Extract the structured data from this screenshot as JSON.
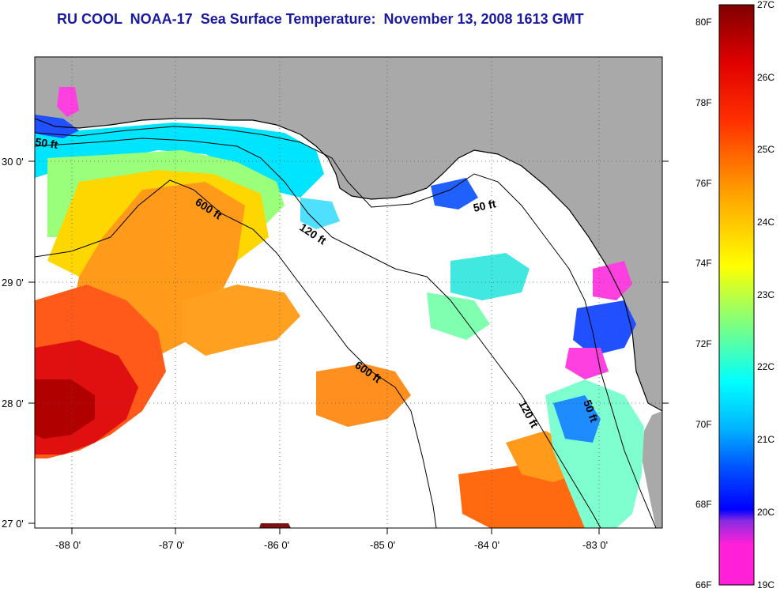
{
  "title": "RU COOL  NOAA-17  Sea Surface Temperature:  November 13, 2008 1613 GMT",
  "lat_ticks": [
    {
      "value": 30,
      "label": "30 0'"
    },
    {
      "value": 29,
      "label": "29 0'"
    },
    {
      "value": 28,
      "label": "28 0'"
    },
    {
      "value": 27,
      "label": "27 0'"
    }
  ],
  "lon_ticks": [
    {
      "value": -88,
      "label": "-88 0'"
    },
    {
      "value": -87,
      "label": "-87 0'"
    },
    {
      "value": -86,
      "label": "-86 0'"
    },
    {
      "value": -85,
      "label": "-85 0'"
    },
    {
      "value": -84,
      "label": "-84 0'"
    },
    {
      "value": -83,
      "label": "-83 0'"
    }
  ],
  "contour_labels": [
    {
      "text": "50 ft"
    },
    {
      "text": "600 ft"
    },
    {
      "text": "120 ft"
    },
    {
      "text": "50 ft"
    },
    {
      "text": "600 ft"
    },
    {
      "text": "120 ft"
    },
    {
      "text": "50 ft"
    }
  ],
  "colorbar": {
    "fahrenheit": [
      "80F",
      "78F",
      "76F",
      "74F",
      "72F",
      "70F",
      "68F",
      "66F"
    ],
    "celsius": [
      "27C",
      "26C",
      "25C",
      "24C",
      "23C",
      "22C",
      "21C",
      "20C",
      "19C"
    ],
    "colors": [
      "#ff20d8",
      "#8a2be2",
      "#0000ff",
      "#00b4ff",
      "#00ffff",
      "#7fff7f",
      "#ffff00",
      "#ffa500",
      "#ff0000",
      "#800000"
    ]
  },
  "colors": {
    "land": "#a9a9a9",
    "title": "#1a1aa0",
    "cloud": "#ffffff"
  }
}
